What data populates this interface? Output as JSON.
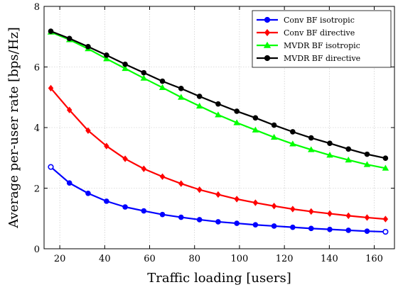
{
  "chart_data": {
    "type": "line",
    "xlabel": "Traffic loading [users]",
    "ylabel": "Average per-user rate [bps/Hz]",
    "xlim": [
      13,
      169
    ],
    "ylim": [
      0,
      8
    ],
    "xticks": [
      20,
      40,
      60,
      80,
      100,
      120,
      140,
      160
    ],
    "yticks": [
      0,
      2,
      4,
      6,
      8
    ],
    "grid": true,
    "legend_position": "top-right",
    "x": [
      16,
      24.3,
      32.6,
      40.8,
      49.1,
      57.4,
      65.7,
      74,
      82.2,
      90.5,
      98.8,
      107.1,
      115.4,
      123.7,
      131.9,
      140.2,
      148.5,
      156.8,
      165
    ],
    "series": [
      {
        "name": "Conv BF isotropic",
        "color": "#0000ff",
        "marker": "circle",
        "values": [
          2.7,
          2.17,
          1.83,
          1.57,
          1.38,
          1.25,
          1.13,
          1.04,
          0.96,
          0.89,
          0.84,
          0.79,
          0.75,
          0.71,
          0.67,
          0.64,
          0.61,
          0.58,
          0.56
        ]
      },
      {
        "name": "Conv BF directive",
        "color": "#ff0000",
        "marker": "diamond",
        "values": [
          5.3,
          4.58,
          3.9,
          3.39,
          2.97,
          2.64,
          2.38,
          2.15,
          1.95,
          1.79,
          1.64,
          1.52,
          1.41,
          1.31,
          1.23,
          1.16,
          1.09,
          1.03,
          0.98
        ]
      },
      {
        "name": "MVDR BF isotropic",
        "color": "#00ff00",
        "marker": "triangle",
        "values": [
          7.15,
          6.9,
          6.6,
          6.27,
          5.95,
          5.63,
          5.32,
          5.0,
          4.71,
          4.42,
          4.16,
          3.92,
          3.68,
          3.46,
          3.27,
          3.09,
          2.93,
          2.78,
          2.66
        ]
      },
      {
        "name": "MVDR BF directive",
        "color": "#000000",
        "marker": "circle",
        "values": [
          7.18,
          6.94,
          6.67,
          6.39,
          6.09,
          5.81,
          5.53,
          5.29,
          5.03,
          4.78,
          4.54,
          4.32,
          4.08,
          3.86,
          3.66,
          3.48,
          3.29,
          3.12,
          2.99
        ]
      }
    ]
  }
}
